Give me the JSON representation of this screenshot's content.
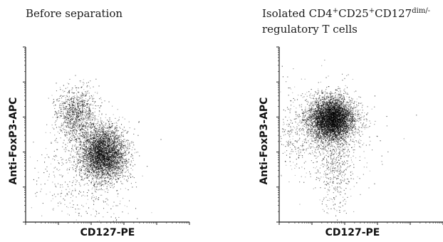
{
  "panels": [
    {
      "title_main": "Before separation",
      "title_line2": "",
      "xlabel": "CD127-PE",
      "ylabel": "Anti-FoxP3-APC"
    },
    {
      "title_parts": {
        "pre": "Isolated CD4",
        "sup1": "+",
        "mid1": "CD25",
        "sup2": "+",
        "mid2": "CD127",
        "sup3": "dim/-"
      },
      "title_line2": "regulatory T cells",
      "xlabel": "CD127-PE",
      "ylabel": "Anti-FoxP3-APC"
    }
  ],
  "chart_data": [
    {
      "type": "scatter",
      "title": "Before separation",
      "xlabel": "CD127-PE",
      "ylabel": "Anti-FoxP3-APC",
      "scale": "log",
      "xlim": [
        0,
        5
      ],
      "ylim": [
        0,
        5
      ],
      "populations": [
        {
          "center": [
            2.35,
            1.95
          ],
          "spread": [
            0.35,
            0.38
          ],
          "count": 4200
        },
        {
          "center": [
            1.55,
            3.05
          ],
          "spread": [
            0.32,
            0.4
          ],
          "count": 1200
        },
        {
          "center": [
            1.8,
            1.2
          ],
          "spread": [
            0.8,
            0.8
          ],
          "count": 500
        }
      ]
    },
    {
      "type": "scatter",
      "title": "Isolated CD4+CD25+CD127dim/- regulatory T cells",
      "xlabel": "CD127-PE",
      "ylabel": "Anti-FoxP3-APC",
      "scale": "log",
      "xlim": [
        0,
        5
      ],
      "ylim": [
        0,
        5
      ],
      "populations": [
        {
          "center": [
            1.6,
            2.95
          ],
          "spread": [
            0.33,
            0.3
          ],
          "count": 5200
        },
        {
          "center": [
            1.2,
            2.6
          ],
          "spread": [
            0.75,
            0.65
          ],
          "count": 1100
        },
        {
          "center": [
            1.7,
            1.5
          ],
          "spread": [
            0.25,
            0.6
          ],
          "count": 400
        }
      ]
    }
  ]
}
